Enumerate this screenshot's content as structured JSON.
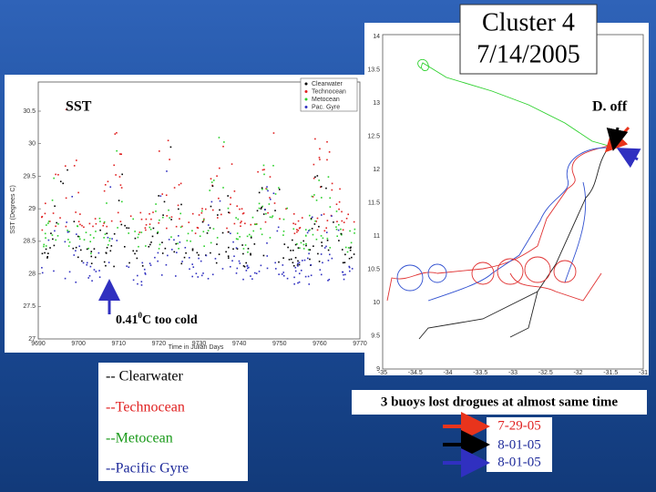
{
  "title": {
    "line1": "Cluster 4",
    "line2": "7/14/2005"
  },
  "sst_plot": {
    "label": "SST",
    "yticks": [
      "30.5",
      "30",
      "29.5",
      "29",
      "28.5",
      "28",
      "27.5",
      "27"
    ],
    "xticks": [
      "9690",
      "9700",
      "9710",
      "9720",
      "9730",
      "9740",
      "9750",
      "9760",
      "9770"
    ],
    "xlabel": "Time in Julian Days",
    "ylabel": "SST (Degrees C)",
    "legend": [
      "Clearwater",
      "Technocean",
      "Metocean",
      "Pac. Gyre"
    ],
    "annotation": {
      "value": "0.41",
      "sup": "0",
      "rest": "C too cold"
    }
  },
  "track_map": {
    "label": "D. off",
    "yticks": [
      "14",
      "13.5",
      "13",
      "12.5",
      "12",
      "11.5",
      "11",
      "10.5",
      "10",
      "9.5",
      "9"
    ],
    "xticks": [
      "-35",
      "-34.5",
      "-34",
      "-33.5",
      "-33",
      "-32.5",
      "-32",
      "-31.5",
      "-31"
    ]
  },
  "buoy_legend": [
    "-- Clearwater",
    "--Technocean",
    "--Metocean",
    "--Pacific Gyre"
  ],
  "note": "3 buoys lost drogues at almost same time",
  "drogue_dates": [
    "7-29-05",
    "8-01-05",
    "8-01-05"
  ]
}
